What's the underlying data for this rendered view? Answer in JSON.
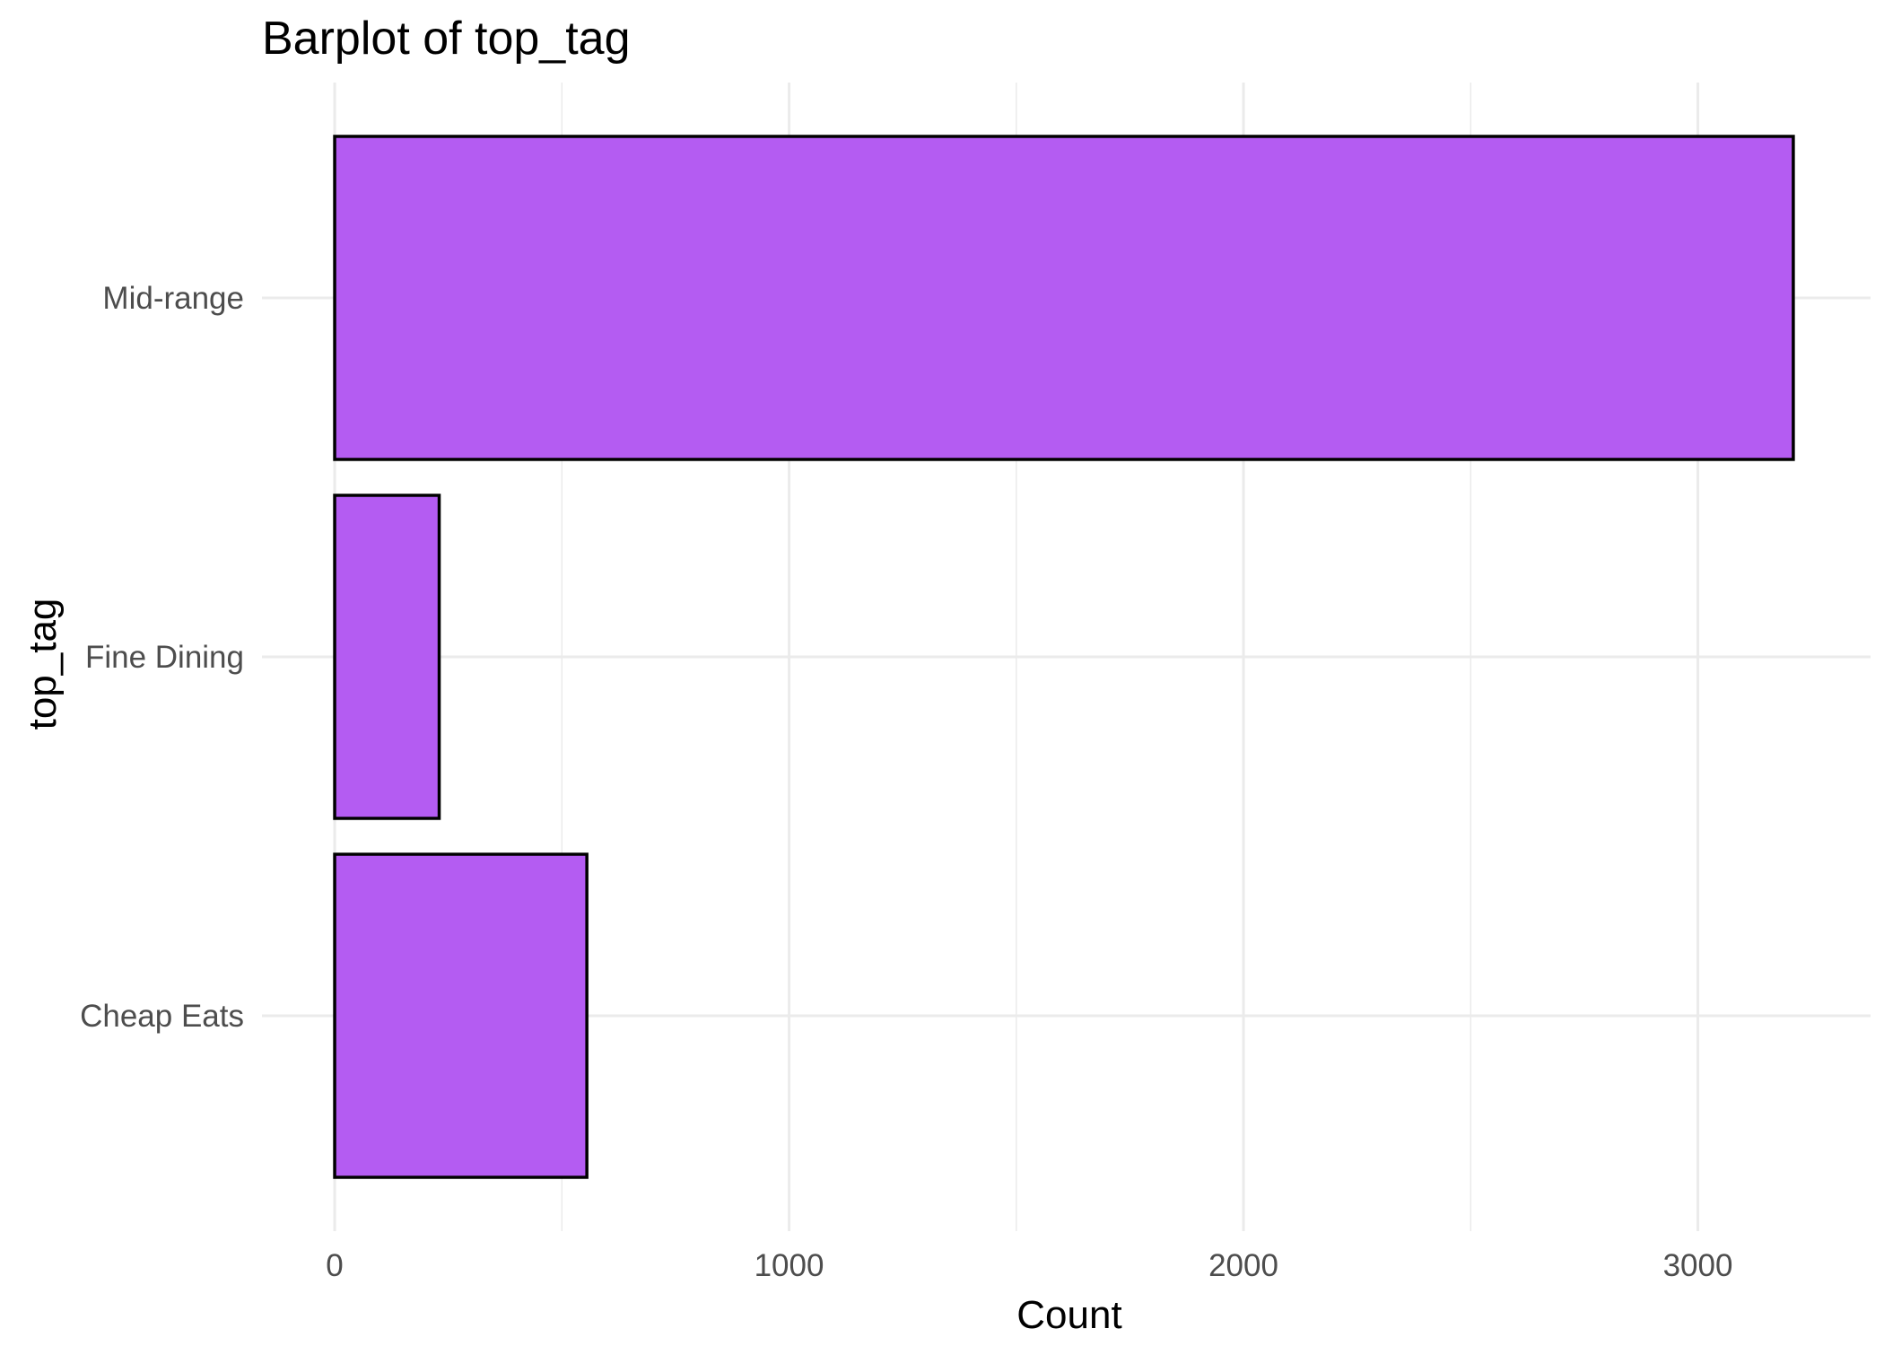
{
  "chart_data": {
    "type": "bar",
    "orientation": "horizontal",
    "title": "Barplot of top_tag",
    "xlabel": "Count",
    "ylabel": "top_tag",
    "categories": [
      "Cheap Eats",
      "Fine Dining",
      "Mid-range"
    ],
    "values": [
      555,
      230,
      3210
    ],
    "xlim": [
      -160,
      3380
    ],
    "xticks": [
      0,
      1000,
      2000,
      3000
    ],
    "xtick_labels": [
      "0",
      "1000",
      "2000",
      "3000"
    ],
    "bar_color": "#b45cf2",
    "bar_outline": "#000000",
    "grid": true,
    "legend": "none"
  }
}
